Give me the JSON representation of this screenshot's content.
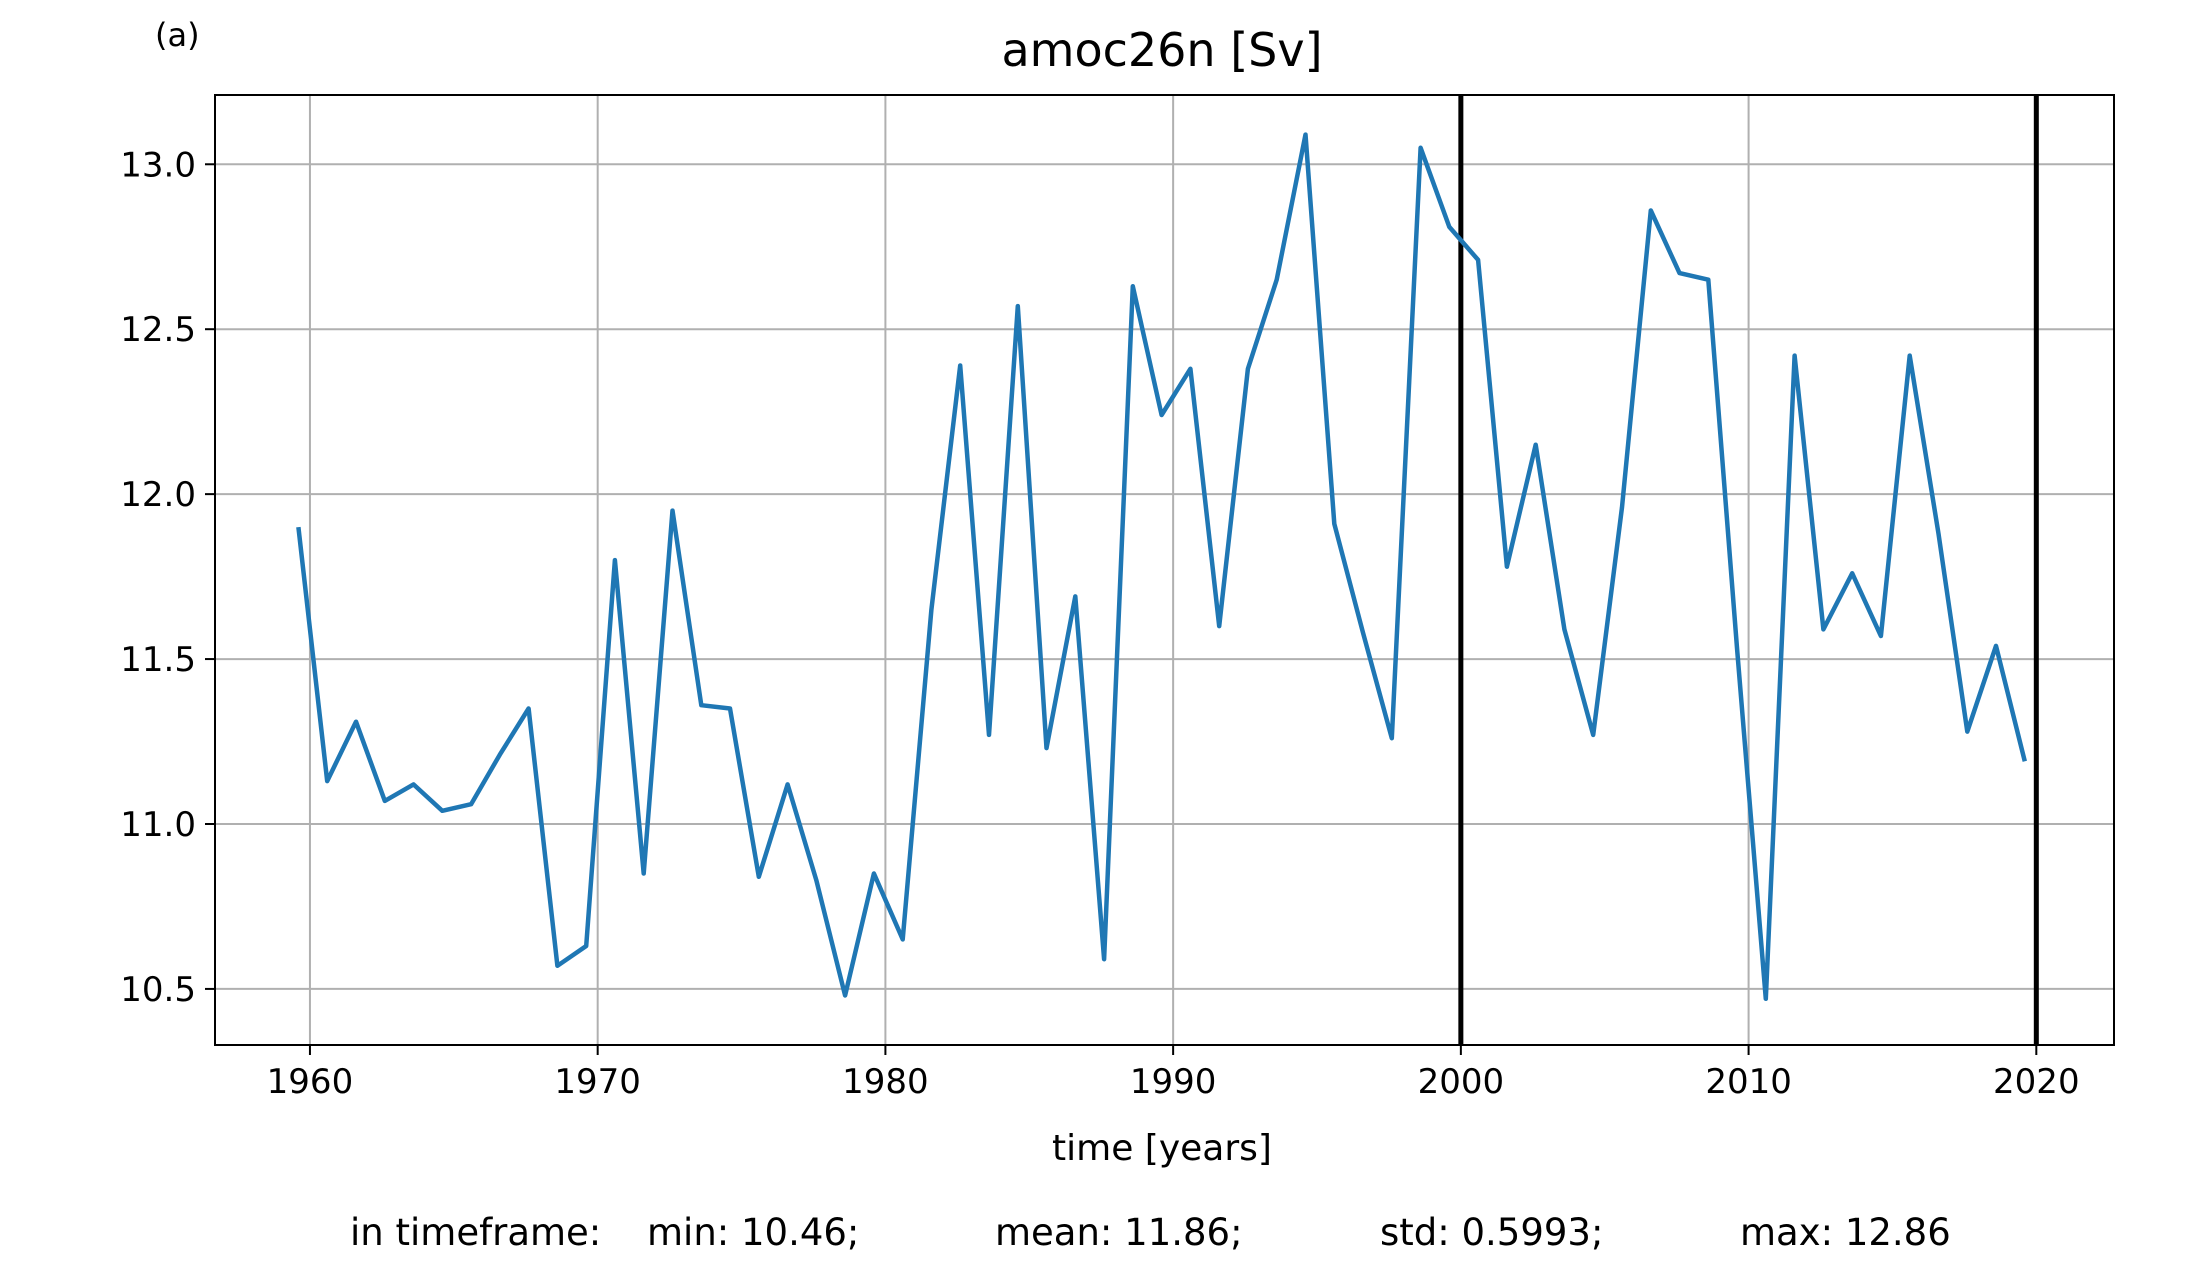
{
  "chart_data": {
    "type": "line",
    "panel_label": "(a)",
    "title": "amoc26n [Sv]",
    "xlabel": "time [years]",
    "ylabel": "",
    "xlim": [
      1956.7,
      2022.7
    ],
    "ylim": [
      10.33,
      13.21
    ],
    "x_ticks": [
      1960,
      1970,
      1980,
      1990,
      2000,
      2010,
      2020
    ],
    "y_ticks": [
      10.5,
      11.0,
      11.5,
      12.0,
      12.5,
      13.0
    ],
    "y_tick_labels": [
      "10.5",
      "11.0",
      "11.5",
      "12.0",
      "12.5",
      "13.0"
    ],
    "grid": true,
    "series_color": "#1f77b4",
    "vertical_lines": [
      2000,
      2020
    ],
    "vertical_line_color": "#000000",
    "series": [
      {
        "x": [
          1959.6,
          1960.6,
          1961.6,
          1962.6,
          1963.6,
          1964.6,
          1965.6,
          1966.6,
          1967.6,
          1968.6,
          1969.6,
          1970.6,
          1971.6,
          1972.6,
          1973.6,
          1974.6,
          1975.6,
          1976.6,
          1977.6,
          1978.6,
          1979.6,
          1980.6,
          1981.6,
          1982.6,
          1983.6,
          1984.6,
          1985.6,
          1986.6,
          1987.6,
          1988.6,
          1989.6,
          1990.6,
          1991.6,
          1992.6,
          1993.6,
          1994.6,
          1995.6,
          1996.6,
          1997.6,
          1998.6,
          1999.6,
          2000.6,
          2001.6,
          2002.6,
          2003.6,
          2004.6,
          2005.6,
          2006.6,
          2007.6,
          2008.6,
          2009.6,
          2010.6,
          2011.6,
          2012.6,
          2013.6,
          2014.6,
          2015.6,
          2016.6,
          2017.6,
          2018.6,
          2019.6
        ],
        "y": [
          11.9,
          11.13,
          11.31,
          11.07,
          11.12,
          11.04,
          11.06,
          11.21,
          11.35,
          10.57,
          10.63,
          11.8,
          10.85,
          11.95,
          11.36,
          11.35,
          10.84,
          11.12,
          10.83,
          10.48,
          10.85,
          10.65,
          11.65,
          12.39,
          11.27,
          12.57,
          11.23,
          11.69,
          10.59,
          12.63,
          12.24,
          12.38,
          11.6,
          12.38,
          12.65,
          13.09,
          11.91,
          11.58,
          11.26,
          13.05,
          12.81,
          12.71,
          11.78,
          12.15,
          11.59,
          11.27,
          11.96,
          12.86,
          12.67,
          12.65,
          11.53,
          10.47,
          12.42,
          11.59,
          11.76,
          11.57,
          12.42,
          11.88,
          11.28,
          11.54,
          11.19
        ]
      }
    ],
    "stats": {
      "prefix": "in timeframe:",
      "min": "min: 10.46;",
      "mean": "mean: 11.86;",
      "std": "std: 0.5993;",
      "max": "max: 12.86"
    }
  }
}
